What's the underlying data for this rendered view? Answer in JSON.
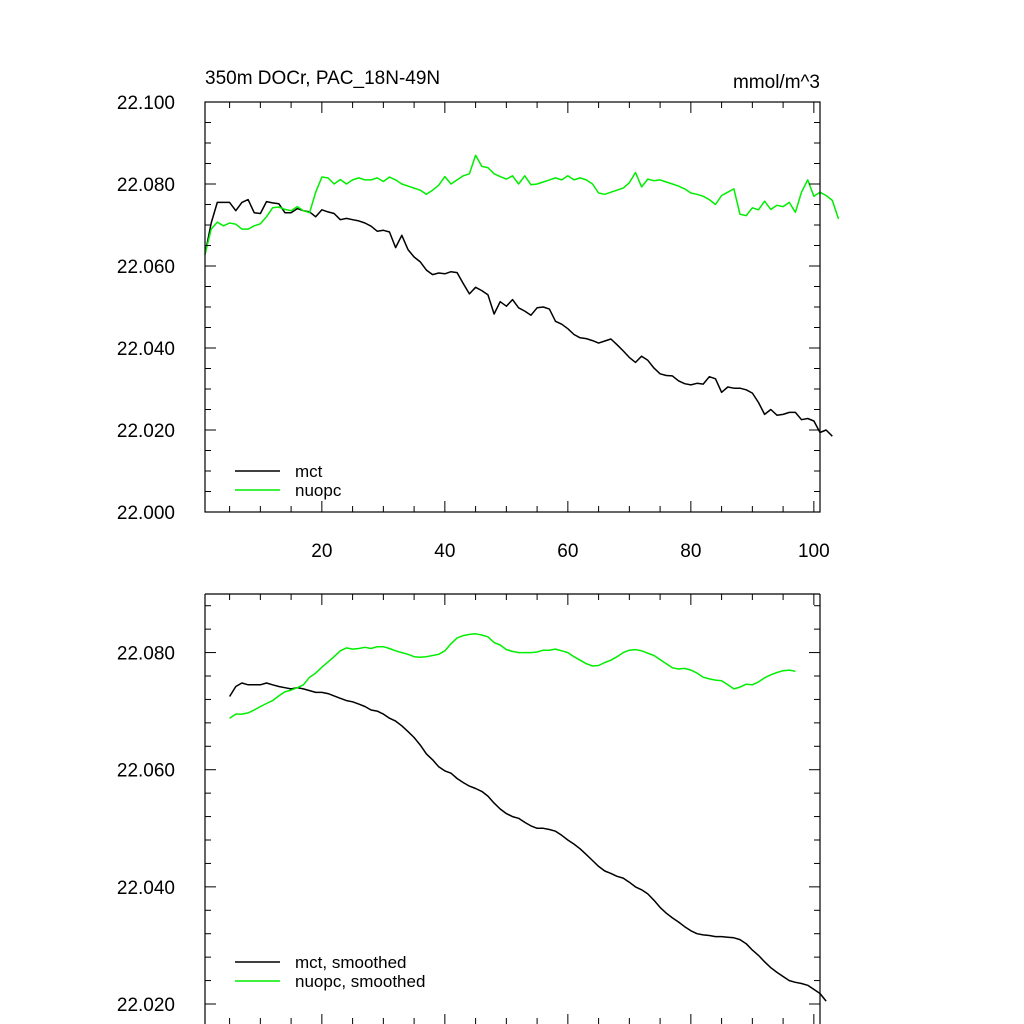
{
  "chart_data": [
    {
      "type": "line",
      "title": "350m DOCr, PAC_18N-49N",
      "units": "mmol/m^3",
      "xlim": [
        1,
        101
      ],
      "ylim": [
        22.0,
        22.1
      ],
      "xticks": [
        20,
        40,
        60,
        80,
        100
      ],
      "yticks": [
        22.0,
        22.02,
        22.04,
        22.06,
        22.08,
        22.1
      ],
      "xtick_labels": [
        "20",
        "40",
        "60",
        "80",
        "100"
      ],
      "ytick_labels": [
        "22.000",
        "22.020",
        "22.040",
        "22.060",
        "22.080",
        "22.100"
      ],
      "legend_position": "bottom-left",
      "series": [
        {
          "name": "mct",
          "color": "#000000",
          "x_start": 1,
          "values": [
            22.0628,
            22.0705,
            22.0755,
            22.0755,
            22.0755,
            22.0735,
            22.0755,
            22.0762,
            22.073,
            22.0728,
            22.0757,
            22.0754,
            22.0752,
            22.073,
            22.073,
            22.074,
            22.0735,
            22.0732,
            22.072,
            22.0737,
            22.0732,
            22.0728,
            22.0713,
            22.0716,
            22.0713,
            22.071,
            22.0705,
            22.0697,
            22.0685,
            22.0687,
            22.0683,
            22.0645,
            22.0675,
            22.064,
            22.0622,
            22.061,
            22.059,
            22.0579,
            22.0583,
            22.0581,
            22.0586,
            22.0584,
            22.0557,
            22.0532,
            22.0548,
            22.054,
            22.053,
            22.0483,
            22.0513,
            22.0502,
            22.0518,
            22.0498,
            22.049,
            22.048,
            22.0498,
            22.05,
            22.0495,
            22.0465,
            22.0458,
            22.0447,
            22.0433,
            22.0425,
            22.0423,
            22.0418,
            22.0412,
            22.0417,
            22.0422,
            22.0408,
            22.0393,
            22.0377,
            22.0365,
            22.038,
            22.037,
            22.0351,
            22.0337,
            22.0333,
            22.0332,
            22.032,
            22.0313,
            22.031,
            22.0314,
            22.0312,
            22.033,
            22.0325,
            22.0292,
            22.0305,
            22.0302,
            22.0302,
            22.0298,
            22.029,
            22.0267,
            22.0238,
            22.025,
            22.0236,
            22.0238,
            22.0243,
            22.0243,
            22.0225,
            22.0228,
            22.0222,
            22.0194,
            22.02,
            22.0185
          ]
        },
        {
          "name": "nuopc",
          "color": "#00ee00",
          "x_start": 1,
          "values": [
            22.0628,
            22.069,
            22.0707,
            22.0698,
            22.0705,
            22.0702,
            22.069,
            22.069,
            22.0698,
            22.0703,
            22.072,
            22.0742,
            22.0744,
            22.0738,
            22.0735,
            22.0745,
            22.0735,
            22.073,
            22.078,
            22.0817,
            22.0815,
            22.08,
            22.0811,
            22.08,
            22.081,
            22.0815,
            22.081,
            22.081,
            22.0815,
            22.0806,
            22.0817,
            22.081,
            22.08,
            22.0795,
            22.079,
            22.0785,
            22.0775,
            22.0785,
            22.0797,
            22.0818,
            22.08,
            22.081,
            22.082,
            22.0825,
            22.087,
            22.0843,
            22.084,
            22.0825,
            22.0818,
            22.0812,
            22.082,
            22.08,
            22.082,
            22.0798,
            22.08,
            22.0805,
            22.081,
            22.0815,
            22.081,
            22.082,
            22.081,
            22.0815,
            22.081,
            22.08,
            22.0778,
            22.0775,
            22.078,
            22.0785,
            22.079,
            22.0803,
            22.0828,
            22.0793,
            22.0812,
            22.0808,
            22.081,
            22.0805,
            22.08,
            22.0795,
            22.0788,
            22.0778,
            22.0775,
            22.077,
            22.0762,
            22.075,
            22.0772,
            22.078,
            22.0788,
            22.0726,
            22.0723,
            22.0742,
            22.0737,
            22.0758,
            22.0738,
            22.0748,
            22.0745,
            22.0755,
            22.0731,
            22.078,
            22.081,
            22.077,
            22.078,
            22.0772,
            22.076,
            22.0715
          ]
        }
      ]
    },
    {
      "type": "line",
      "title": "",
      "xlim": [
        1,
        101
      ],
      "ylim": [
        22.02,
        22.09
      ],
      "xticks": [
        20,
        40,
        60,
        80,
        100
      ],
      "yticks": [
        22.02,
        22.04,
        22.06,
        22.08
      ],
      "ytick_labels": [
        "22.020",
        "22.040",
        "22.060",
        "22.080"
      ],
      "legend_position": "bottom-left",
      "series": [
        {
          "name": "mct, smoothed",
          "color": "#000000",
          "x_start": 5,
          "values": [
            22.0725,
            22.0742,
            22.0748,
            22.0745,
            22.0745,
            22.0745,
            22.0748,
            22.0745,
            22.0742,
            22.074,
            22.0738,
            22.074,
            22.0738,
            22.0735,
            22.0732,
            22.0732,
            22.073,
            22.0726,
            22.0722,
            22.0718,
            22.0716,
            22.0712,
            22.0708,
            22.0702,
            22.07,
            22.0695,
            22.0688,
            22.0683,
            22.0675,
            22.0665,
            22.0655,
            22.0642,
            22.0627,
            22.0617,
            22.0605,
            22.0598,
            22.0594,
            22.0585,
            22.0578,
            22.0572,
            22.0568,
            22.0563,
            22.0555,
            22.0543,
            22.0533,
            22.0525,
            22.052,
            22.0517,
            22.051,
            22.0504,
            22.05,
            22.05,
            22.0498,
            22.0495,
            22.0488,
            22.048,
            22.0473,
            22.0465,
            22.0455,
            22.0445,
            22.0435,
            22.0427,
            22.0423,
            22.0418,
            22.0415,
            22.0408,
            22.04,
            22.0395,
            22.0388,
            22.0377,
            22.0365,
            22.0355,
            22.0347,
            22.034,
            22.0332,
            22.0325,
            22.032,
            22.0318,
            22.0317,
            22.0315,
            22.0315,
            22.0314,
            22.0313,
            22.031,
            22.0303,
            22.0292,
            22.0283,
            22.0272,
            22.0262,
            22.0254,
            22.0247,
            22.024,
            22.0237,
            22.0235,
            22.0232,
            22.0225,
            22.0218,
            22.0205
          ]
        },
        {
          "name": "nuopc, smoothed",
          "color": "#00ee00",
          "x_start": 5,
          "values": [
            22.0688,
            22.0695,
            22.0695,
            22.0697,
            22.0702,
            22.0708,
            22.0713,
            22.0718,
            22.0726,
            22.0733,
            22.0736,
            22.074,
            22.0745,
            22.0758,
            22.0765,
            22.0775,
            22.0784,
            22.0793,
            22.0803,
            22.0808,
            22.0806,
            22.0807,
            22.0809,
            22.0807,
            22.081,
            22.081,
            22.0807,
            22.0803,
            22.08,
            22.0797,
            22.0793,
            22.0792,
            22.0793,
            22.0795,
            22.0797,
            22.0803,
            22.0815,
            22.0825,
            22.0829,
            22.0831,
            22.0832,
            22.083,
            22.0827,
            22.0817,
            22.0813,
            22.0805,
            22.0802,
            22.08,
            22.08,
            22.08,
            22.0801,
            22.0804,
            22.0804,
            22.0806,
            22.0803,
            22.08,
            22.0793,
            22.0787,
            22.0781,
            22.0777,
            22.0778,
            22.0783,
            22.0787,
            22.0793,
            22.08,
            22.0804,
            22.0805,
            22.0803,
            22.0799,
            22.0795,
            22.0788,
            22.0781,
            22.0774,
            22.0772,
            22.0773,
            22.077,
            22.0765,
            22.0758,
            22.0755,
            22.0753,
            22.0752,
            22.0745,
            22.0738,
            22.0741,
            22.0746,
            22.0745,
            22.075,
            22.0757,
            22.0762,
            22.0766,
            22.0769,
            22.077,
            22.0768
          ]
        }
      ]
    }
  ]
}
